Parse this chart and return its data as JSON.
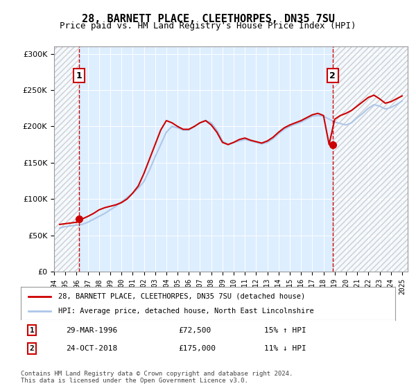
{
  "title1": "28, BARNETT PLACE, CLEETHORPES, DN35 7SU",
  "title2": "Price paid vs. HM Land Registry's House Price Index (HPI)",
  "legend_line1": "28, BARNETT PLACE, CLEETHORPES, DN35 7SU (detached house)",
  "legend_line2": "HPI: Average price, detached house, North East Lincolnshire",
  "footnote": "Contains HM Land Registry data © Crown copyright and database right 2024.\nThis data is licensed under the Open Government Licence v3.0.",
  "sale1_date": "29-MAR-1996",
  "sale1_price": 72500,
  "sale1_note": "15% ↑ HPI",
  "sale2_date": "24-OCT-2018",
  "sale2_price": 175000,
  "sale2_note": "11% ↓ HPI",
  "sale1_x": 1996.24,
  "sale2_x": 2018.81,
  "hpi_color": "#aec6e8",
  "price_color": "#cc0000",
  "dot_color": "#cc0000",
  "bg_color": "#ddeeff",
  "hatch_color": "#cccccc",
  "ylim": [
    0,
    310000
  ],
  "yticks": [
    0,
    50000,
    100000,
    150000,
    200000,
    250000,
    300000
  ],
  "xlim_start": 1994.0,
  "xlim_end": 2025.5,
  "hpi_data": {
    "years": [
      1994.5,
      1995.0,
      1995.5,
      1996.0,
      1996.5,
      1997.0,
      1997.5,
      1998.0,
      1998.5,
      1999.0,
      1999.5,
      2000.0,
      2000.5,
      2001.0,
      2001.5,
      2002.0,
      2002.5,
      2003.0,
      2003.5,
      2004.0,
      2004.5,
      2005.0,
      2005.5,
      2006.0,
      2006.5,
      2007.0,
      2007.5,
      2008.0,
      2008.5,
      2009.0,
      2009.5,
      2010.0,
      2010.5,
      2011.0,
      2011.5,
      2012.0,
      2012.5,
      2013.0,
      2013.5,
      2014.0,
      2014.5,
      2015.0,
      2015.5,
      2016.0,
      2016.5,
      2017.0,
      2017.5,
      2018.0,
      2018.5,
      2019.0,
      2019.5,
      2020.0,
      2020.5,
      2021.0,
      2021.5,
      2022.0,
      2022.5,
      2023.0,
      2023.5,
      2024.0,
      2024.5,
      2025.0
    ],
    "values": [
      60000,
      62000,
      63000,
      64000,
      65000,
      68000,
      72000,
      76000,
      80000,
      85000,
      90000,
      96000,
      102000,
      108000,
      115000,
      124000,
      140000,
      158000,
      175000,
      192000,
      200000,
      198000,
      195000,
      195000,
      200000,
      205000,
      208000,
      205000,
      195000,
      180000,
      175000,
      178000,
      180000,
      182000,
      180000,
      178000,
      176000,
      178000,
      183000,
      190000,
      196000,
      200000,
      203000,
      206000,
      210000,
      214000,
      215000,
      214000,
      210000,
      206000,
      204000,
      202000,
      205000,
      212000,
      218000,
      225000,
      230000,
      228000,
      224000,
      226000,
      230000,
      235000
    ]
  },
  "price_data": {
    "years": [
      1994.5,
      1995.0,
      1995.5,
      1996.0,
      1996.5,
      1997.0,
      1997.5,
      1998.0,
      1998.5,
      1999.0,
      1999.5,
      2000.0,
      2000.5,
      2001.0,
      2001.5,
      2002.0,
      2002.5,
      2003.0,
      2003.5,
      2004.0,
      2004.5,
      2005.0,
      2005.5,
      2006.0,
      2006.5,
      2007.0,
      2007.5,
      2008.0,
      2008.5,
      2009.0,
      2009.5,
      2010.0,
      2010.5,
      2011.0,
      2011.5,
      2012.0,
      2012.5,
      2013.0,
      2013.5,
      2014.0,
      2014.5,
      2015.0,
      2015.5,
      2016.0,
      2016.5,
      2017.0,
      2017.5,
      2018.0,
      2018.5,
      2019.0,
      2019.5,
      2020.0,
      2020.5,
      2021.0,
      2021.5,
      2022.0,
      2022.5,
      2023.0,
      2023.5,
      2024.0,
      2024.5,
      2025.0
    ],
    "values": [
      65000,
      66000,
      67000,
      68000,
      72500,
      76000,
      80000,
      85000,
      88000,
      90000,
      92000,
      95000,
      100000,
      108000,
      118000,
      135000,
      155000,
      175000,
      195000,
      208000,
      205000,
      200000,
      196000,
      196000,
      200000,
      205000,
      208000,
      202000,
      192000,
      178000,
      175000,
      178000,
      182000,
      184000,
      181000,
      179000,
      177000,
      180000,
      185000,
      192000,
      198000,
      202000,
      205000,
      208000,
      212000,
      216000,
      218000,
      215000,
      175000,
      210000,
      215000,
      218000,
      222000,
      228000,
      234000,
      240000,
      243000,
      238000,
      232000,
      234000,
      238000,
      242000
    ]
  }
}
